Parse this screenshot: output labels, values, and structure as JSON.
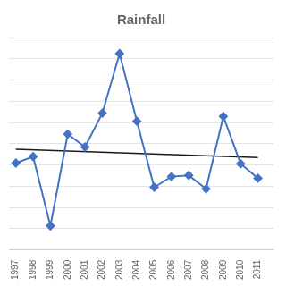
{
  "chart_data": {
    "type": "line",
    "title": "Rainfall",
    "series": [
      {
        "type": "line",
        "color": "#4472C4",
        "marker": "diamond",
        "x": [
          1997,
          1998,
          1999,
          2000,
          2001,
          2002,
          2003,
          2004,
          2005,
          2006,
          2007,
          2008,
          2009,
          2010,
          2011
        ],
        "values": [
          490,
          510,
          295,
          580,
          540,
          645,
          830,
          620,
          415,
          448,
          452,
          410,
          635,
          488,
          443
        ]
      },
      {
        "type": "line",
        "color": "#1a1a1a",
        "line_style": "solid",
        "x": [
          1997,
          2011
        ],
        "values": [
          532.9166667,
          507.2166667
        ]
      }
    ],
    "xlim": [
      1996.6,
      2011.9
    ],
    "xticks": [
      1997,
      1998,
      1999,
      2000,
      2001,
      2002,
      2003,
      2004,
      2005,
      2006,
      2007,
      2008,
      2009,
      2010,
      2011
    ],
    "ylim": [
      220,
      880
    ],
    "yticks": [
      220,
      286,
      352,
      418,
      484,
      550,
      616,
      682,
      748,
      814,
      880
    ],
    "grid": true,
    "tick_labels": "x"
  }
}
